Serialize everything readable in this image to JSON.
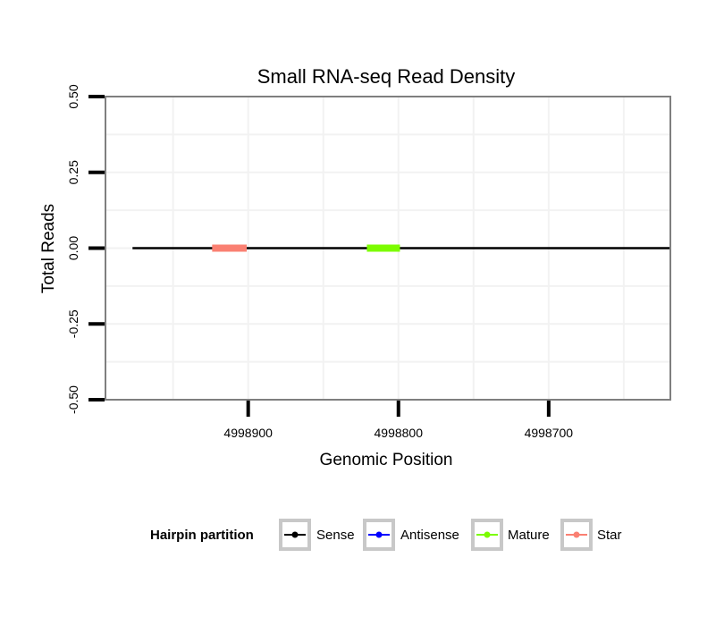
{
  "chart_data": {
    "type": "line",
    "title": "Small RNA-seq Read Density",
    "xlabel": "Genomic Position",
    "ylabel": "Total Reads",
    "x_reversed": true,
    "xlim": [
      4998995,
      4998619
    ],
    "ylim": [
      -0.5,
      0.5
    ],
    "x_ticks": [
      4998900,
      4998800,
      4998700
    ],
    "x_tick_labels": [
      "4998900",
      "4998800",
      "4998700"
    ],
    "y_ticks": [
      0.5,
      0.25,
      0.0,
      -0.25,
      -0.5
    ],
    "y_tick_labels": [
      "0.50",
      "0.25",
      "0.00",
      "-0.25",
      "-0.50"
    ],
    "series": [
      {
        "name": "Sense",
        "color": "#000000",
        "x": [
          4998977,
          4998619
        ],
        "y": [
          0,
          0
        ]
      },
      {
        "name": "Antisense",
        "color": "#0000ff",
        "x": [],
        "y": []
      },
      {
        "name": "Mature",
        "color": "#7cfc00",
        "x": [
          4998821,
          4998799
        ],
        "y": [
          0,
          0
        ]
      },
      {
        "name": "Star",
        "color": "#fa8072",
        "x": [
          4998924,
          4998901
        ],
        "y": [
          0,
          0
        ]
      }
    ],
    "legend": {
      "title": "Hairpin partition",
      "position": "bottom",
      "entries": [
        "Sense",
        "Antisense",
        "Mature",
        "Star"
      ]
    }
  }
}
